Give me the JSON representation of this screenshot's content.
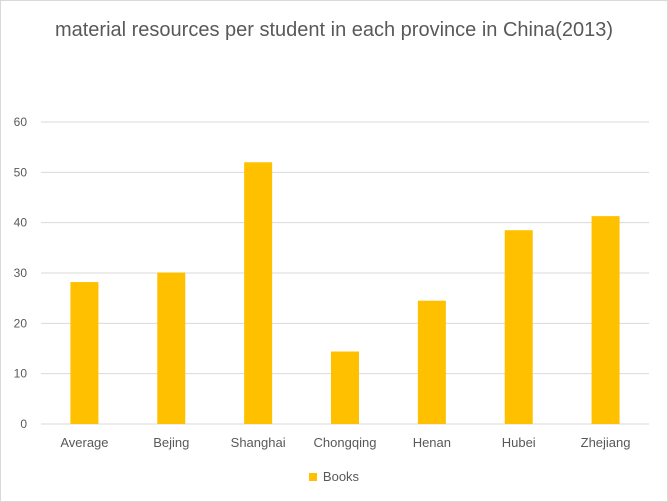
{
  "chart_data": {
    "type": "bar",
    "title": "material resources per student in each province in China(2013)",
    "categories": [
      "Average",
      "Bejing",
      "Shanghai",
      "Chongqing",
      "Henan",
      "Hubei",
      "Zhejiang"
    ],
    "series": [
      {
        "name": "Books",
        "color": "#ffc000",
        "values": [
          28.2,
          30.1,
          52.0,
          14.4,
          24.5,
          38.5,
          41.3
        ]
      }
    ],
    "ylim": [
      0,
      60
    ],
    "yticks": [
      "0",
      "10",
      "20",
      "30",
      "40",
      "50",
      "60"
    ],
    "grid": true,
    "legend_position": "bottom"
  }
}
